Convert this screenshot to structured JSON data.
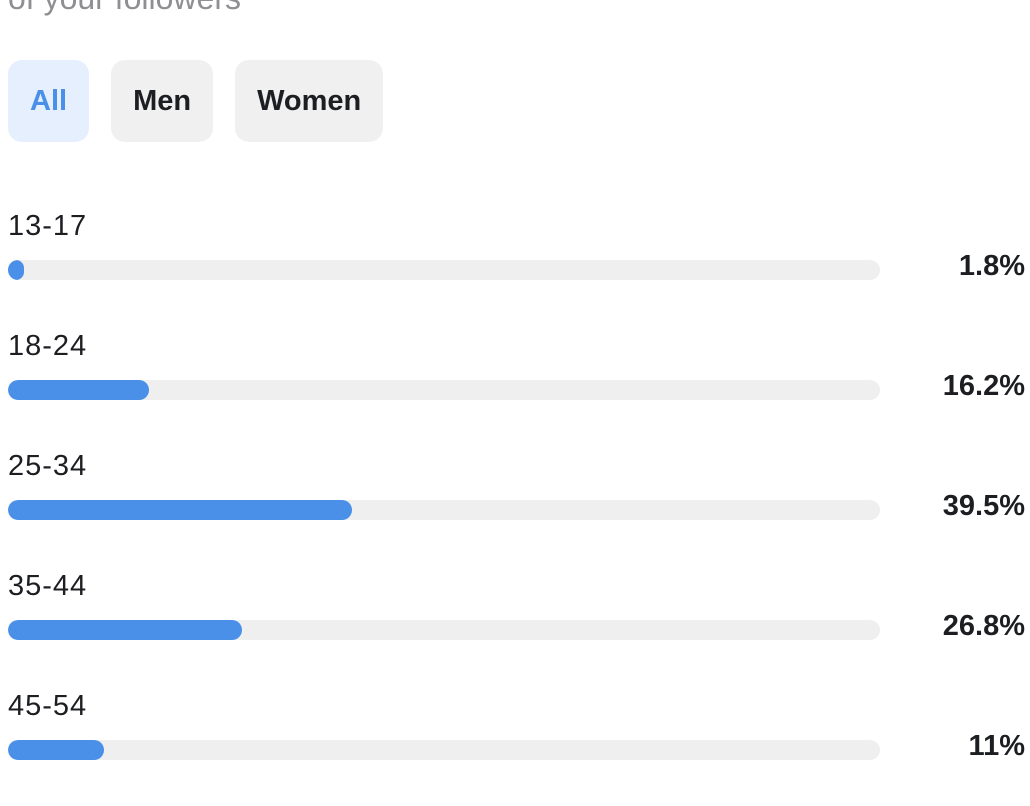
{
  "header": {
    "subtitle": "of your followers"
  },
  "filters": {
    "options": [
      "All",
      "Men",
      "Women"
    ],
    "selected": "All"
  },
  "colors": {
    "accent": "#4a90e8",
    "track": "#efefef",
    "chip_active_bg": "#e5effd",
    "chip_bg": "#f0f0f0"
  },
  "chart_data": {
    "type": "bar",
    "categories": [
      "13-17",
      "18-24",
      "25-34",
      "35-44",
      "45-54"
    ],
    "values": [
      1.8,
      16.2,
      39.5,
      26.8,
      11
    ],
    "value_labels": [
      "1.8%",
      "16.2%",
      "39.5%",
      "26.8%",
      "11%"
    ],
    "fill_fraction": [
      0.018,
      0.162,
      0.395,
      0.268,
      0.11
    ],
    "orientation": "horizontal"
  }
}
